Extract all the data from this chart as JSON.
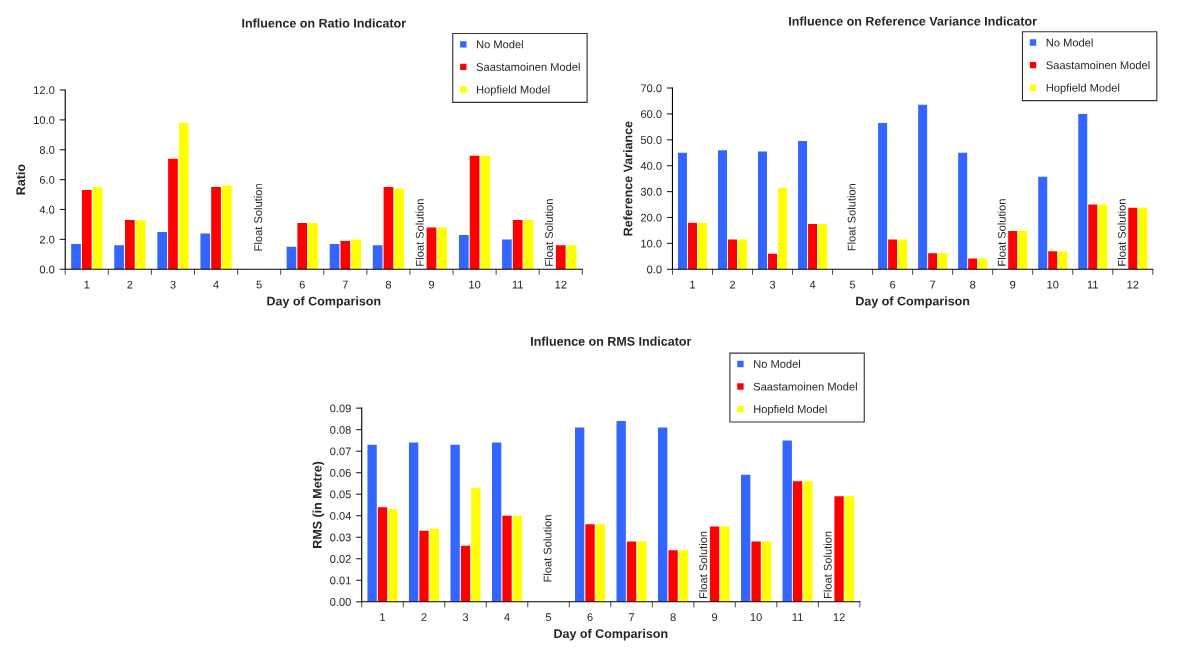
{
  "chart_data": [
    {
      "type": "bar",
      "title": "Influence on Ratio Indicator",
      "xlabel": "Day of Comparison",
      "ylabel": "Ratio",
      "categories": [
        "1",
        "2",
        "3",
        "4",
        "5",
        "6",
        "7",
        "8",
        "9",
        "10",
        "11",
        "12"
      ],
      "series": [
        {
          "name": "No Model",
          "color": "#3366ff",
          "values": [
            1.7,
            1.6,
            2.5,
            2.4,
            null,
            1.5,
            1.7,
            1.6,
            null,
            2.3,
            2.0,
            null
          ]
        },
        {
          "name": "Saastamoinen Model",
          "color": "#ff0000",
          "values": [
            5.3,
            3.3,
            7.4,
            5.5,
            null,
            3.1,
            1.9,
            5.5,
            2.8,
            7.6,
            3.3,
            1.6
          ]
        },
        {
          "name": "Hopfield Model",
          "color": "#ffff00",
          "values": [
            5.5,
            3.3,
            9.8,
            5.6,
            null,
            3.1,
            2.0,
            5.4,
            2.8,
            7.6,
            3.3,
            1.6
          ]
        }
      ],
      "ylim": [
        0,
        12
      ],
      "yticks": [
        {
          "value": 0,
          "label": "0.0"
        },
        {
          "value": 2,
          "label": "2.0"
        },
        {
          "value": 4,
          "label": "4.0"
        },
        {
          "value": 6,
          "label": "6.0"
        },
        {
          "value": 8,
          "label": "8.0"
        },
        {
          "value": 10,
          "label": "10.0"
        },
        {
          "value": 12,
          "label": "12.0"
        }
      ],
      "annotations": [
        "Float Solution",
        {
          "text": "Float Solution",
          "x": "9",
          "y": 0
        },
        {
          "text": "Float Solution",
          "x": "12",
          "y": 0
        }
      ],
      "grid": false,
      "legend": "top right"
    },
    {
      "type": "bar",
      "title": "Influence on Reference Variance Indicator",
      "xlabel": "Day of Comparison",
      "ylabel": "Reference Variance",
      "categories": [
        "1",
        "2",
        "3",
        "4",
        "5",
        "6",
        "7",
        "8",
        "9",
        "10",
        "11",
        "12"
      ],
      "series": [
        {
          "name": "No Model",
          "color": "#3366ff",
          "values": [
            45,
            46,
            45.5,
            49.5,
            null,
            56.5,
            63.5,
            45,
            null,
            35.7,
            60,
            null
          ]
        },
        {
          "name": "Saastamoinen Model",
          "color": "#ff0000",
          "values": [
            18,
            11.5,
            6,
            17.5,
            null,
            11.5,
            6.2,
            4.2,
            14.8,
            7,
            25,
            23.8
          ]
        },
        {
          "name": "Hopfield Model",
          "color": "#ffff00",
          "values": [
            18,
            11.5,
            31.5,
            17.5,
            null,
            11.5,
            6.2,
            4.2,
            14.8,
            7,
            25,
            23.8
          ]
        }
      ],
      "ylim": [
        0,
        70
      ],
      "yticks": [
        {
          "value": 0,
          "label": "0.0"
        },
        {
          "value": 10,
          "label": "10.0"
        },
        {
          "value": 20,
          "label": "20.0"
        },
        {
          "value": 30,
          "label": "30.0"
        },
        {
          "value": 40,
          "label": "40.0"
        },
        {
          "value": 50,
          "label": "50.0"
        },
        {
          "value": 60,
          "label": "60.0"
        },
        {
          "value": 70,
          "label": "70.0"
        }
      ],
      "annotations": [
        "Float Solution",
        {
          "text": "Float Solution",
          "x": "9",
          "y": 0
        },
        {
          "text": "Float Solution",
          "x": "12",
          "y": 0
        }
      ],
      "grid": false,
      "legend": "top right"
    },
    {
      "type": "bar",
      "title": "Influence on RMS Indicator",
      "xlabel": "Day of Comparison",
      "ylabel": "RMS (in Metre)",
      "categories": [
        "1",
        "2",
        "3",
        "4",
        "5",
        "6",
        "7",
        "8",
        "9",
        "10",
        "11",
        "12"
      ],
      "series": [
        {
          "name": "No Model",
          "color": "#3366ff",
          "values": [
            0.073,
            0.074,
            0.073,
            0.074,
            null,
            0.081,
            0.084,
            0.081,
            null,
            0.059,
            0.075,
            null
          ]
        },
        {
          "name": "Saastamoinen Model",
          "color": "#ff0000",
          "values": [
            0.044,
            0.033,
            0.026,
            0.04,
            null,
            0.036,
            0.028,
            0.024,
            0.035,
            0.028,
            0.056,
            0.049
          ]
        },
        {
          "name": "Hopfield Model",
          "color": "#ffff00",
          "values": [
            0.043,
            0.034,
            0.053,
            0.04,
            null,
            0.036,
            0.028,
            0.024,
            0.035,
            0.028,
            0.056,
            0.049
          ]
        }
      ],
      "ylim": [
        0,
        0.09
      ],
      "yticks": [
        {
          "value": 0,
          "label": "0.00"
        },
        {
          "value": 0.01,
          "label": "0.01"
        },
        {
          "value": 0.02,
          "label": "0.02"
        },
        {
          "value": 0.03,
          "label": "0.03"
        },
        {
          "value": 0.04,
          "label": "0.04"
        },
        {
          "value": 0.05,
          "label": "0.05"
        },
        {
          "value": 0.06,
          "label": "0.06"
        },
        {
          "value": 0.07,
          "label": "0.07"
        },
        {
          "value": 0.08,
          "label": "0.08"
        },
        {
          "value": 0.09,
          "label": "0.09"
        }
      ],
      "annotations": [
        "Float Solution",
        {
          "text": "Float Solution",
          "x": "9",
          "y": 0
        },
        {
          "text": "Float Solution",
          "x": "12",
          "y": 0
        }
      ],
      "grid": false,
      "legend": "top right"
    }
  ]
}
